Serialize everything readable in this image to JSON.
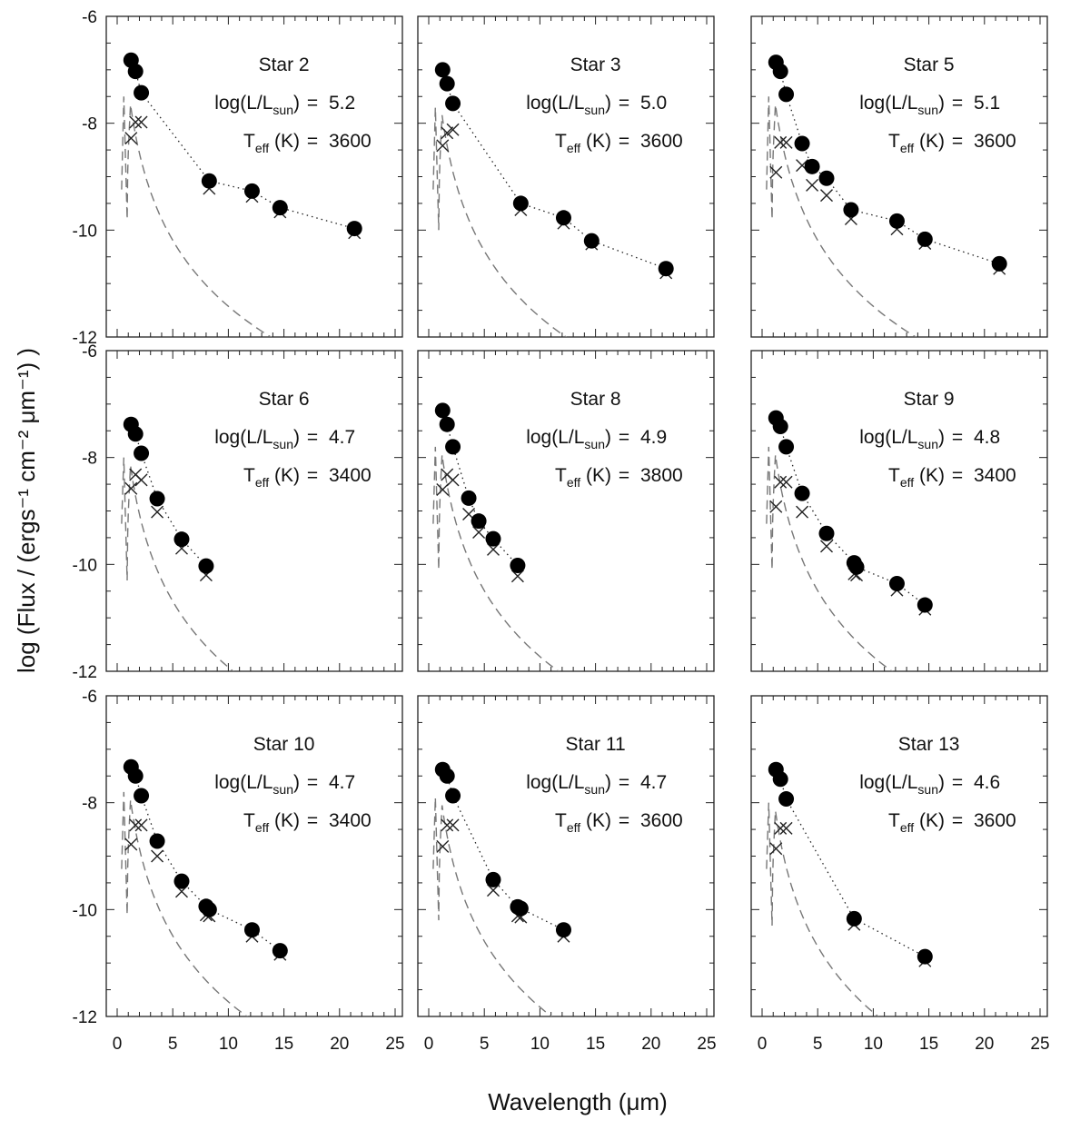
{
  "chart_data": {
    "type": "scatter",
    "xlabel": "Wavelength (μm)",
    "ylabel": "log (Flux / (ergs⁻¹ cm⁻² μm⁻¹) )",
    "xlim": [
      0,
      25
    ],
    "ylim": [
      -12,
      -6
    ],
    "xticks": [
      "0",
      "5",
      "10",
      "15",
      "20",
      "25"
    ],
    "yticks": [
      "-6",
      "-8",
      "-10",
      "-12"
    ],
    "lum_label": "log(L/L",
    "lum_sub": "sun",
    "temp_label": "T",
    "temp_sub": "eff",
    "temp_unit": "(K)",
    "equals": "=",
    "panels": [
      {
        "title": "Star 2",
        "logL": "5.2",
        "teff": "3600",
        "model_offset": -8.0,
        "observed": [
          [
            1.25,
            -6.82
          ],
          [
            1.65,
            -7.03
          ],
          [
            2.17,
            -7.43
          ],
          [
            8.28,
            -9.08
          ],
          [
            12.13,
            -9.27
          ],
          [
            14.65,
            -9.58
          ],
          [
            21.34,
            -9.97
          ]
        ],
        "dereddened": [
          [
            1.25,
            -8.28
          ],
          [
            1.65,
            -7.98
          ],
          [
            2.17,
            -7.98
          ],
          [
            8.28,
            -9.22
          ],
          [
            12.13,
            -9.37
          ],
          [
            14.65,
            -9.66
          ],
          [
            21.34,
            -10.05
          ]
        ]
      },
      {
        "title": "Star 3",
        "logL": "5.0",
        "teff": "3600",
        "model_offset": -8.2,
        "observed": [
          [
            1.25,
            -7.0
          ],
          [
            1.65,
            -7.26
          ],
          [
            2.17,
            -7.63
          ],
          [
            8.28,
            -9.5
          ],
          [
            12.13,
            -9.77
          ],
          [
            14.65,
            -10.2
          ],
          [
            21.34,
            -10.72
          ]
        ],
        "dereddened": [
          [
            1.25,
            -8.42
          ],
          [
            1.65,
            -8.18
          ],
          [
            2.17,
            -8.12
          ],
          [
            8.28,
            -9.62
          ],
          [
            12.13,
            -9.87
          ],
          [
            14.65,
            -10.26
          ],
          [
            21.34,
            -10.8
          ]
        ]
      },
      {
        "title": "Star 5",
        "logL": "5.1",
        "teff": "3600",
        "model_offset": -8.0,
        "observed": [
          [
            1.25,
            -6.86
          ],
          [
            1.65,
            -7.03
          ],
          [
            2.17,
            -7.46
          ],
          [
            3.6,
            -8.38
          ],
          [
            4.5,
            -8.81
          ],
          [
            5.8,
            -9.03
          ],
          [
            8.0,
            -9.62
          ],
          [
            12.13,
            -9.83
          ],
          [
            14.65,
            -10.17
          ],
          [
            21.34,
            -10.63
          ]
        ],
        "dereddened": [
          [
            1.25,
            -8.92
          ],
          [
            1.65,
            -8.36
          ],
          [
            2.17,
            -8.36
          ],
          [
            3.6,
            -8.79
          ],
          [
            4.5,
            -9.16
          ],
          [
            5.8,
            -9.35
          ],
          [
            8.0,
            -9.79
          ],
          [
            12.13,
            -9.98
          ],
          [
            14.65,
            -10.25
          ],
          [
            21.34,
            -10.72
          ]
        ]
      },
      {
        "title": "Star 6",
        "logL": "4.7",
        "teff": "3400",
        "model_offset": -8.5,
        "observed": [
          [
            1.25,
            -7.38
          ],
          [
            1.65,
            -7.56
          ],
          [
            2.17,
            -7.92
          ],
          [
            3.6,
            -8.77
          ],
          [
            5.8,
            -9.53
          ],
          [
            8.0,
            -10.03
          ]
        ],
        "dereddened": [
          [
            1.25,
            -8.58
          ],
          [
            1.65,
            -8.32
          ],
          [
            2.17,
            -8.42
          ],
          [
            3.6,
            -9.02
          ],
          [
            5.8,
            -9.7
          ],
          [
            8.0,
            -10.2
          ]
        ]
      },
      {
        "title": "Star 8",
        "logL": "4.9",
        "teff": "3800",
        "model_offset": -8.3,
        "observed": [
          [
            1.25,
            -7.12
          ],
          [
            1.65,
            -7.38
          ],
          [
            2.17,
            -7.8
          ],
          [
            3.6,
            -8.76
          ],
          [
            4.5,
            -9.19
          ],
          [
            5.8,
            -9.52
          ],
          [
            8.0,
            -10.02
          ]
        ],
        "dereddened": [
          [
            1.25,
            -8.6
          ],
          [
            1.65,
            -8.32
          ],
          [
            2.17,
            -8.42
          ],
          [
            3.6,
            -9.06
          ],
          [
            4.5,
            -9.4
          ],
          [
            5.8,
            -9.72
          ],
          [
            8.0,
            -10.22
          ]
        ]
      },
      {
        "title": "Star 9",
        "logL": "4.8",
        "teff": "3400",
        "model_offset": -8.3,
        "observed": [
          [
            1.25,
            -7.26
          ],
          [
            1.65,
            -7.42
          ],
          [
            2.17,
            -7.8
          ],
          [
            3.6,
            -8.67
          ],
          [
            5.8,
            -9.42
          ],
          [
            8.28,
            -9.97
          ],
          [
            8.5,
            -10.05
          ],
          [
            12.13,
            -10.36
          ],
          [
            14.65,
            -10.76
          ]
        ],
        "dereddened": [
          [
            1.25,
            -8.92
          ],
          [
            1.65,
            -8.46
          ],
          [
            2.17,
            -8.46
          ],
          [
            3.6,
            -9.02
          ],
          [
            5.8,
            -9.66
          ],
          [
            8.28,
            -10.18
          ],
          [
            8.5,
            -10.2
          ],
          [
            12.13,
            -10.48
          ],
          [
            14.65,
            -10.84
          ]
        ]
      },
      {
        "title": "Star 10",
        "logL": "4.7",
        "teff": "3400",
        "model_offset": -8.3,
        "observed": [
          [
            1.25,
            -7.33
          ],
          [
            1.65,
            -7.5
          ],
          [
            2.17,
            -7.87
          ],
          [
            3.6,
            -8.72
          ],
          [
            5.8,
            -9.47
          ],
          [
            8.0,
            -9.94
          ],
          [
            8.28,
            -10.0
          ],
          [
            12.13,
            -10.38
          ],
          [
            14.65,
            -10.77
          ]
        ],
        "dereddened": [
          [
            1.25,
            -8.78
          ],
          [
            1.65,
            -8.42
          ],
          [
            2.17,
            -8.42
          ],
          [
            3.6,
            -9.0
          ],
          [
            5.8,
            -9.66
          ],
          [
            8.0,
            -10.1
          ],
          [
            8.28,
            -10.12
          ],
          [
            12.13,
            -10.5
          ],
          [
            14.65,
            -10.84
          ]
        ]
      },
      {
        "title": "Star 11",
        "logL": "4.7",
        "teff": "3600",
        "model_offset": -8.4,
        "observed": [
          [
            1.25,
            -7.38
          ],
          [
            1.65,
            -7.5
          ],
          [
            2.17,
            -7.87
          ],
          [
            5.8,
            -9.44
          ],
          [
            8.0,
            -9.95
          ],
          [
            8.28,
            -9.98
          ],
          [
            12.13,
            -10.38
          ]
        ],
        "dereddened": [
          [
            1.25,
            -8.82
          ],
          [
            1.65,
            -8.42
          ],
          [
            2.17,
            -8.42
          ],
          [
            5.8,
            -9.64
          ],
          [
            8.0,
            -10.12
          ],
          [
            8.28,
            -10.14
          ],
          [
            12.13,
            -10.5
          ]
        ]
      },
      {
        "title": "Star 13",
        "logL": "4.6",
        "teff": "3600",
        "model_offset": -8.5,
        "observed": [
          [
            1.25,
            -7.38
          ],
          [
            1.65,
            -7.56
          ],
          [
            2.17,
            -7.93
          ],
          [
            8.28,
            -10.17
          ],
          [
            14.65,
            -10.88
          ]
        ],
        "dereddened": [
          [
            1.25,
            -8.86
          ],
          [
            1.65,
            -8.48
          ],
          [
            2.17,
            -8.48
          ],
          [
            8.28,
            -10.28
          ],
          [
            14.65,
            -10.96
          ]
        ]
      }
    ]
  }
}
